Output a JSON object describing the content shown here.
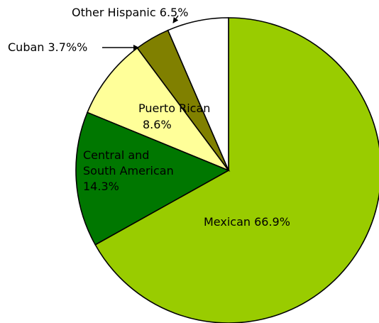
{
  "chart_data": {
    "type": "pie",
    "title": "",
    "start_angle_deg": 0,
    "direction": "clockwise",
    "slices": [
      {
        "label": "Mexican",
        "value": 66.9,
        "display": "66.9%",
        "color": "#99cc00"
      },
      {
        "label": "Central and South American",
        "value": 14.3,
        "display": "14.3%",
        "color": "#007700"
      },
      {
        "label": "Puerto Rican",
        "value": 8.6,
        "display": "8.6%",
        "color": "#ffff99"
      },
      {
        "label": "Cuban",
        "value": 3.7,
        "display": "3.7%%",
        "color": "#808000"
      },
      {
        "label": "Other Hispanic",
        "value": 6.5,
        "display": "6.5%",
        "color": "#ffffff"
      }
    ],
    "data_labels": [
      {
        "name": "label-mexican",
        "lines": [
          "Mexican 66.9%"
        ]
      },
      {
        "name": "label-central-south-american",
        "lines": [
          "Central and",
          "South American",
          "14.3%"
        ]
      },
      {
        "name": "label-puerto-rican",
        "lines": [
          "Puerto Rican",
          "8.6%"
        ]
      },
      {
        "name": "label-cuban",
        "lines": [
          "Cuban 3.7%%"
        ]
      },
      {
        "name": "label-other-hispanic",
        "lines": [
          "Other Hispanic 6.5%"
        ]
      }
    ]
  }
}
